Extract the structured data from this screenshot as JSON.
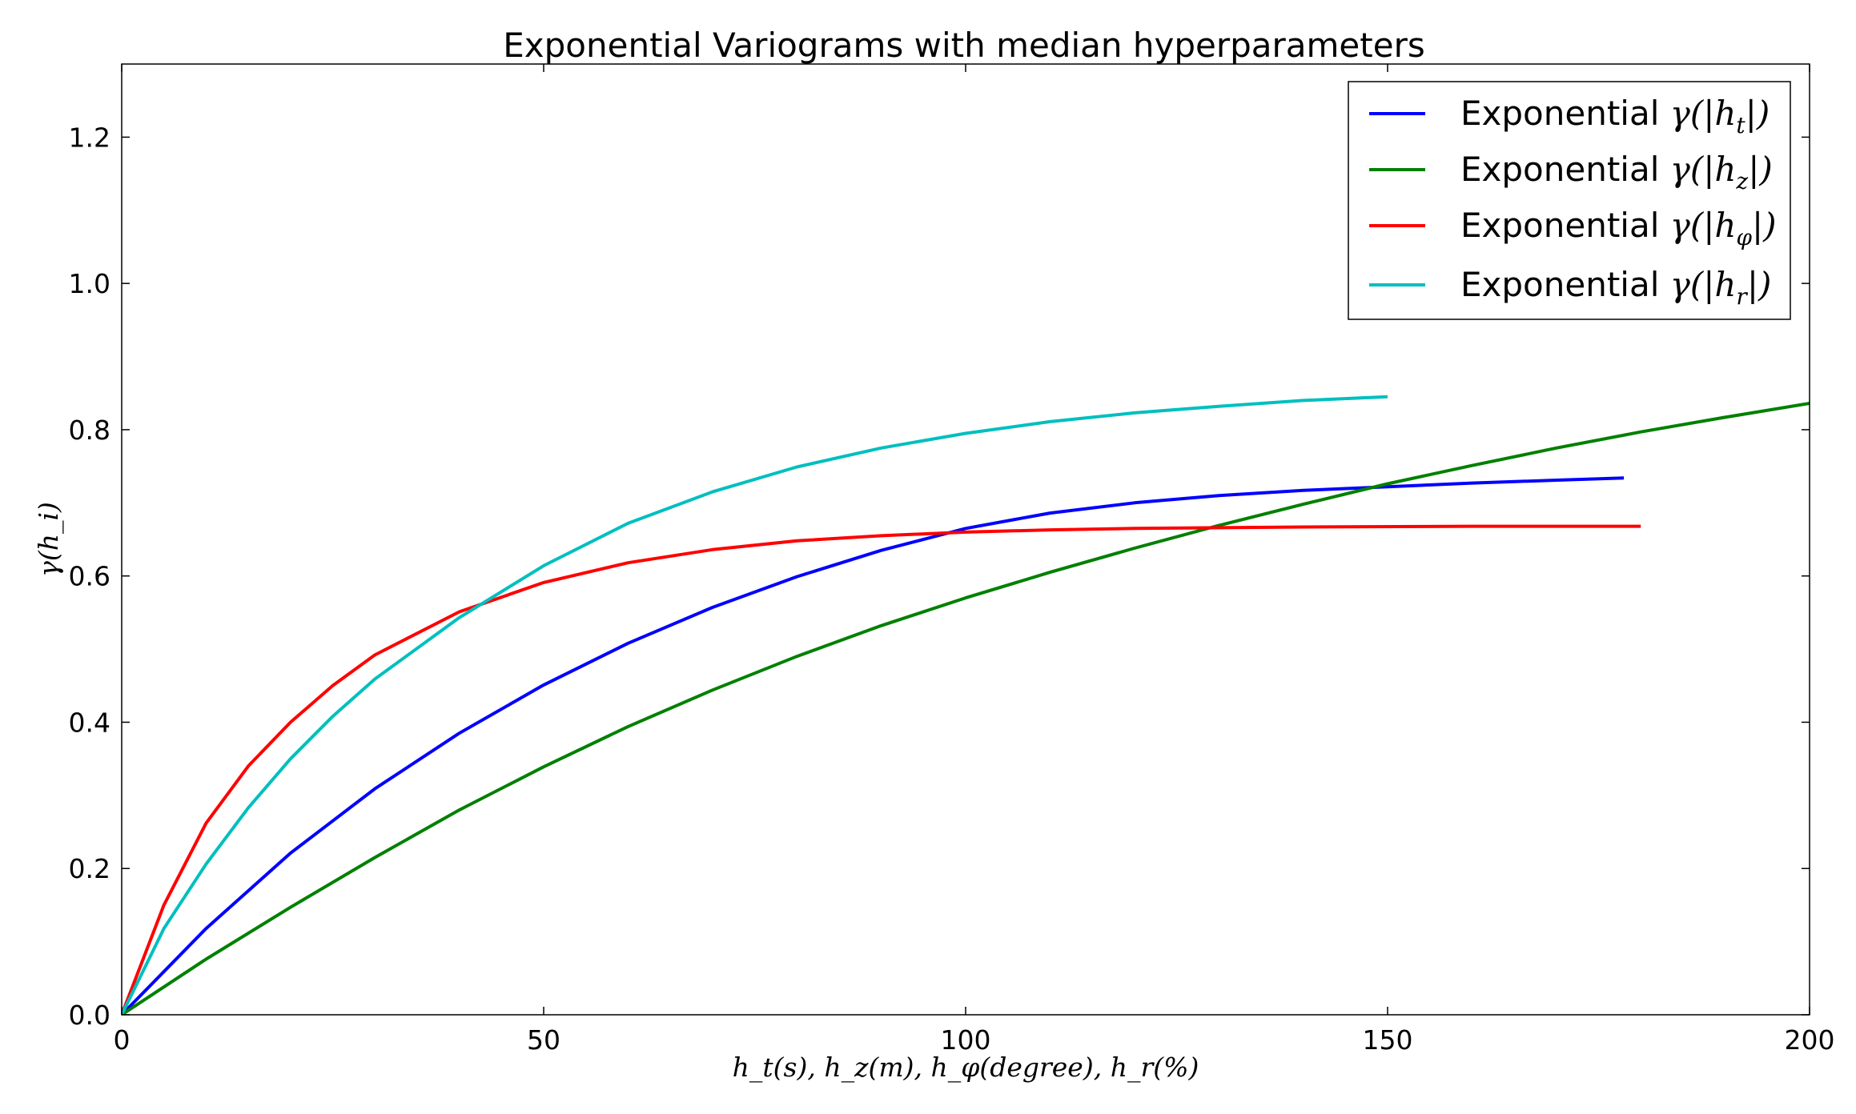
{
  "chart_data": {
    "type": "line",
    "title": "Exponential Variograms with median hyperparameters",
    "xlabel": "h_t(s), h_z(m), h_φ(degree), h_r(%)",
    "ylabel": "γ(h_i)",
    "xlim": [
      0,
      200
    ],
    "ylim": [
      0,
      1.3
    ],
    "xticks": [
      0,
      50,
      100,
      150,
      200
    ],
    "yticks": [
      0.0,
      0.2,
      0.4,
      0.6,
      0.8,
      1.0,
      1.2
    ],
    "xtick_labels": [
      "0",
      "50",
      "100",
      "150",
      "200"
    ],
    "ytick_labels": [
      "0.0",
      "0.2",
      "0.4",
      "0.6",
      "0.8",
      "1.0",
      "1.2"
    ],
    "grid": false,
    "legend_position": "top-right",
    "series": [
      {
        "name": "Exponential γ(|h_t|)",
        "legend_prefix": "Exponential ",
        "legend_math": "γ(|h",
        "legend_sub": "t",
        "legend_suffix": "|)",
        "color": "#0000ff",
        "x": [
          0,
          10,
          20,
          30,
          40,
          50,
          60,
          70,
          80,
          90,
          100,
          110,
          120,
          130,
          140,
          150,
          160,
          170,
          178
        ],
        "y": [
          0,
          0.118,
          0.221,
          0.309,
          0.385,
          0.451,
          0.508,
          0.557,
          0.599,
          0.635,
          0.665,
          0.686,
          0.7,
          0.71,
          0.717,
          0.722,
          0.727,
          0.731,
          0.734
        ]
      },
      {
        "name": "Exponential γ(|h_z|)",
        "legend_prefix": "Exponential ",
        "legend_math": "γ(|h",
        "legend_sub": "z",
        "legend_suffix": "|)",
        "color": "#008000",
        "x": [
          0,
          10,
          20,
          30,
          40,
          50,
          60,
          70,
          80,
          90,
          100,
          110,
          120,
          130,
          140,
          150,
          160,
          170,
          180,
          190,
          200
        ],
        "y": [
          0,
          0.076,
          0.147,
          0.215,
          0.28,
          0.339,
          0.394,
          0.444,
          0.49,
          0.532,
          0.57,
          0.605,
          0.638,
          0.669,
          0.698,
          0.726,
          0.751,
          0.775,
          0.797,
          0.817,
          0.836
        ]
      },
      {
        "name": "Exponential γ(|h_φ|)",
        "legend_prefix": "Exponential ",
        "legend_math": "γ(|h",
        "legend_sub": "φ",
        "legend_suffix": "|)",
        "color": "#ff0000",
        "x": [
          0,
          5,
          10,
          15,
          20,
          25,
          30,
          40,
          50,
          60,
          70,
          80,
          90,
          100,
          110,
          120,
          140,
          160,
          180
        ],
        "y": [
          0,
          0.15,
          0.262,
          0.34,
          0.4,
          0.45,
          0.492,
          0.551,
          0.591,
          0.618,
          0.636,
          0.648,
          0.655,
          0.66,
          0.663,
          0.665,
          0.667,
          0.668,
          0.668
        ]
      },
      {
        "name": "Exponential γ(|h_r|)",
        "legend_prefix": "Exponential ",
        "legend_math": "γ(|h",
        "legend_sub": "r",
        "legend_suffix": "|)",
        "color": "#00bfbf",
        "x": [
          0,
          5,
          10,
          15,
          20,
          25,
          30,
          40,
          50,
          60,
          70,
          80,
          90,
          100,
          110,
          120,
          130,
          140,
          150
        ],
        "y": [
          0,
          0.118,
          0.206,
          0.283,
          0.35,
          0.408,
          0.459,
          0.543,
          0.614,
          0.672,
          0.715,
          0.749,
          0.775,
          0.795,
          0.811,
          0.823,
          0.832,
          0.84,
          0.845
        ]
      }
    ]
  }
}
